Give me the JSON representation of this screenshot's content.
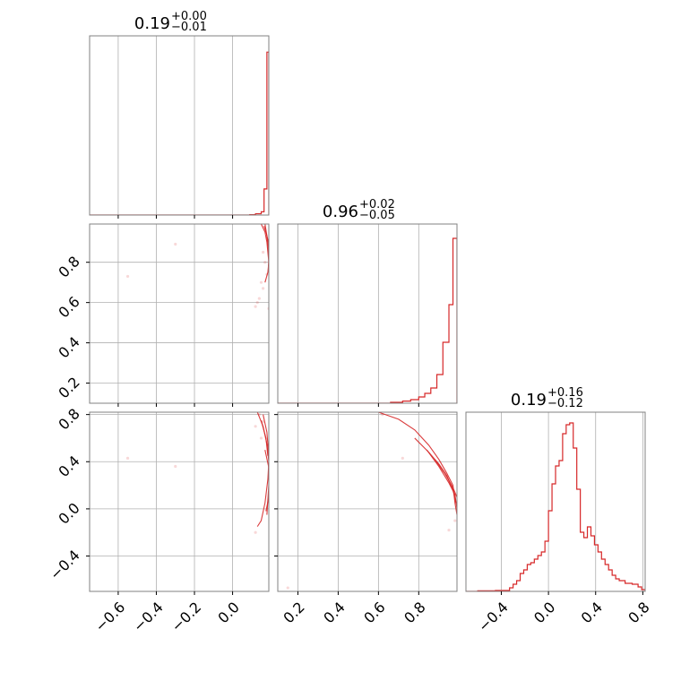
{
  "chart_data": {
    "type": "corner",
    "color": "#d62728",
    "titles": [
      {
        "median": "0.19",
        "plus": "+0.00",
        "minus": "−0.01"
      },
      {
        "median": "0.96",
        "plus": "+0.02",
        "minus": "−0.05"
      },
      {
        "median": "0.19",
        "plus": "+0.16",
        "minus": "−0.12"
      }
    ],
    "ranges": [
      [
        -0.75,
        0.19
      ],
      [
        0.1,
        0.99
      ],
      [
        -0.7,
        0.82
      ]
    ],
    "ticks": [
      {
        "values": [
          -0.6,
          -0.4,
          -0.2,
          0.0
        ],
        "labels": [
          "−0.6",
          "−0.4",
          "−0.2",
          "0.0"
        ]
      },
      {
        "values": [
          0.2,
          0.4,
          0.6,
          0.8
        ],
        "labels": [
          "0.2",
          "0.4",
          "0.6",
          "0.8"
        ]
      },
      {
        "values": [
          -0.4,
          0.0,
          0.4,
          0.8
        ],
        "labels": [
          "−0.4",
          "0.0",
          "0.4",
          "0.8"
        ]
      }
    ],
    "y_ticks": [
      {
        "values": [],
        "labels": []
      },
      {
        "values": [
          0.2,
          0.4,
          0.6,
          0.8
        ],
        "labels": [
          "0.2",
          "0.4",
          "0.6",
          "0.8"
        ]
      },
      {
        "values": [
          -0.4,
          0.0,
          0.4,
          0.8
        ],
        "labels": [
          "−0.4",
          "0.0",
          "0.4",
          "0.8"
        ]
      }
    ],
    "hist": [
      {
        "bins": [
          [
            0.09,
            0.002
          ],
          [
            0.12,
            0.008
          ],
          [
            0.15,
            0.02
          ],
          [
            0.165,
            0.16
          ],
          [
            0.18,
            1.0
          ]
        ],
        "ymax": 1.1
      },
      {
        "bins": [
          [
            0.66,
            0.005
          ],
          [
            0.72,
            0.012
          ],
          [
            0.76,
            0.02
          ],
          [
            0.8,
            0.035
          ],
          [
            0.83,
            0.055
          ],
          [
            0.86,
            0.085
          ],
          [
            0.89,
            0.16
          ],
          [
            0.92,
            0.34
          ],
          [
            0.95,
            0.55
          ],
          [
            0.97,
            0.92
          ]
        ],
        "ymax": 1.0
      },
      {
        "bins": [
          [
            -0.6,
            0.003
          ],
          [
            -0.45,
            0.005
          ],
          [
            -0.33,
            0.02
          ],
          [
            -0.3,
            0.04
          ],
          [
            -0.27,
            0.06
          ],
          [
            -0.24,
            0.1
          ],
          [
            -0.21,
            0.12
          ],
          [
            -0.18,
            0.15
          ],
          [
            -0.15,
            0.16
          ],
          [
            -0.12,
            0.18
          ],
          [
            -0.09,
            0.2
          ],
          [
            -0.06,
            0.22
          ],
          [
            -0.03,
            0.28
          ],
          [
            0.0,
            0.45
          ],
          [
            0.03,
            0.6
          ],
          [
            0.06,
            0.7
          ],
          [
            0.09,
            0.73
          ],
          [
            0.12,
            0.88
          ],
          [
            0.15,
            0.93
          ],
          [
            0.18,
            0.94
          ],
          [
            0.21,
            0.8
          ],
          [
            0.24,
            0.57
          ],
          [
            0.27,
            0.33
          ],
          [
            0.3,
            0.3
          ],
          [
            0.33,
            0.36
          ],
          [
            0.36,
            0.31
          ],
          [
            0.39,
            0.26
          ],
          [
            0.42,
            0.22
          ],
          [
            0.45,
            0.18
          ],
          [
            0.48,
            0.15
          ],
          [
            0.51,
            0.12
          ],
          [
            0.54,
            0.09
          ],
          [
            0.57,
            0.07
          ],
          [
            0.6,
            0.06
          ],
          [
            0.65,
            0.045
          ],
          [
            0.71,
            0.04
          ],
          [
            0.76,
            0.025
          ],
          [
            0.79,
            0.01
          ]
        ],
        "ymax": 1.0
      }
    ],
    "contours": {
      "1-0": [
        [
          [
            0.15,
            0.99
          ],
          [
            0.17,
            0.95
          ],
          [
            0.18,
            0.9
          ],
          [
            0.185,
            0.85
          ],
          [
            0.19,
            0.8
          ],
          [
            0.185,
            0.75
          ],
          [
            0.17,
            0.7
          ]
        ],
        [
          [
            0.17,
            0.99
          ],
          [
            0.18,
            0.93
          ],
          [
            0.186,
            0.88
          ],
          [
            0.19,
            0.82
          ],
          [
            0.188,
            0.78
          ]
        ],
        [
          [
            0.165,
            0.98
          ],
          [
            0.178,
            0.94
          ],
          [
            0.188,
            0.9
          ],
          [
            0.19,
            0.87
          ]
        ]
      ],
      "2-0": [
        [
          [
            0.13,
            0.82
          ],
          [
            0.16,
            0.7
          ],
          [
            0.18,
            0.55
          ],
          [
            0.19,
            0.4
          ],
          [
            0.185,
            0.25
          ],
          [
            0.17,
            0.05
          ],
          [
            0.15,
            -0.1
          ],
          [
            0.13,
            -0.15
          ]
        ],
        [
          [
            0.16,
            0.8
          ],
          [
            0.18,
            0.65
          ],
          [
            0.19,
            0.45
          ],
          [
            0.19,
            0.2
          ],
          [
            0.18,
            -0.05
          ]
        ],
        [
          [
            0.17,
            0.5
          ],
          [
            0.19,
            0.35
          ],
          [
            0.19,
            0.1
          ],
          [
            0.175,
            -0.02
          ]
        ],
        [
          [
            0.15,
            0.75
          ],
          [
            0.175,
            0.6
          ],
          [
            0.185,
            0.45
          ]
        ]
      ],
      "2-1": [
        [
          [
            0.6,
            0.82
          ],
          [
            0.7,
            0.76
          ],
          [
            0.78,
            0.67
          ],
          [
            0.85,
            0.54
          ],
          [
            0.9,
            0.42
          ],
          [
            0.94,
            0.3
          ],
          [
            0.97,
            0.2
          ],
          [
            0.98,
            0.05
          ],
          [
            0.99,
            -0.05
          ]
        ],
        [
          [
            0.78,
            0.6
          ],
          [
            0.85,
            0.48
          ],
          [
            0.9,
            0.38
          ],
          [
            0.94,
            0.28
          ],
          [
            0.97,
            0.16
          ],
          [
            0.985,
            0.05
          ]
        ],
        [
          [
            0.84,
            0.5
          ],
          [
            0.9,
            0.36
          ],
          [
            0.95,
            0.22
          ],
          [
            0.98,
            0.12
          ],
          [
            0.99,
            0.0
          ]
        ],
        [
          [
            0.88,
            0.42
          ],
          [
            0.93,
            0.3
          ],
          [
            0.97,
            0.18
          ],
          [
            0.99,
            0.1
          ]
        ]
      ]
    },
    "points": {
      "1-0": [
        [
          -0.55,
          0.73
        ],
        [
          -0.3,
          0.89
        ],
        [
          0.12,
          0.58
        ],
        [
          0.14,
          0.62
        ],
        [
          0.16,
          0.67
        ],
        [
          0.18,
          0.74
        ],
        [
          0.17,
          0.8
        ],
        [
          0.15,
          0.7
        ],
        [
          0.13,
          0.6
        ],
        [
          0.16,
          0.85
        ],
        [
          0.19,
          0.57
        ]
      ],
      "2-0": [
        [
          -0.55,
          0.43
        ],
        [
          -0.3,
          0.36
        ],
        [
          0.12,
          -0.2
        ],
        [
          0.14,
          0.8
        ],
        [
          0.16,
          0.74
        ],
        [
          0.12,
          0.7
        ],
        [
          0.15,
          0.6
        ]
      ],
      "2-1": [
        [
          0.15,
          -0.67
        ],
        [
          0.72,
          0.43
        ],
        [
          0.62,
          0.8
        ],
        [
          0.95,
          -0.18
        ],
        [
          0.98,
          -0.1
        ]
      ]
    }
  }
}
